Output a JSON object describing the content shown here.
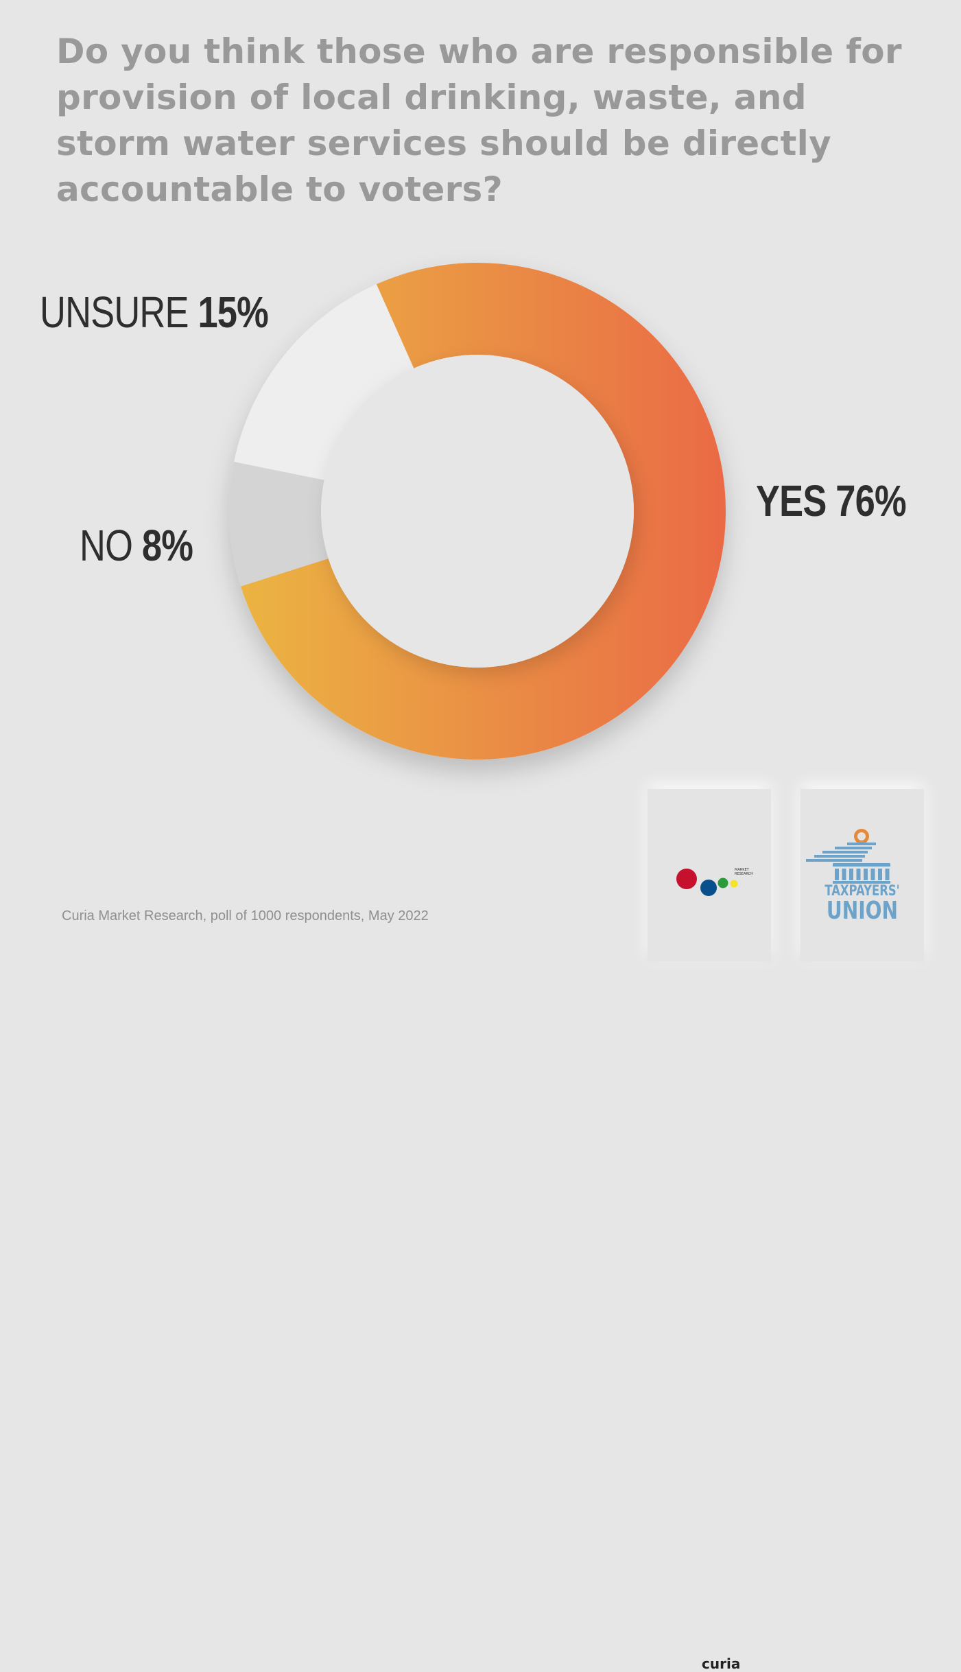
{
  "title": "Do you think those who are responsible for provision of local drinking, waste, and storm water services should be directly accountable to voters?",
  "chart_data": {
    "type": "pie",
    "title": "Do you think those who are responsible for provision of local drinking, waste, and storm water services should be directly accountable to voters?",
    "donut": true,
    "categories": [
      "YES",
      "NO",
      "UNSURE"
    ],
    "values": [
      76,
      8,
      15
    ],
    "labels": [
      {
        "word": "YES",
        "value": "76%"
      },
      {
        "word": "NO",
        "value": "8%"
      },
      {
        "word": "UNSURE",
        "value": "15%"
      }
    ],
    "colors": [
      "#e9a441",
      "#d4d4d4",
      "#eeeeee"
    ],
    "gradient": [
      "#ebb443",
      "#ea6a45"
    ],
    "legend": "none"
  },
  "source": "Curia Market Research, poll of 1000 respondents, May 2022",
  "logos": {
    "curia": {
      "word": "curia",
      "sub": "MARKET RESEARCH",
      "dot_colors": [
        "#c5102e",
        "#0a4f8c",
        "#2a9a3a",
        "#f2e42a"
      ]
    },
    "taxpayers_union": {
      "line1": "TAXPAYERS'",
      "line2": "UNION",
      "color": "#6da3c9",
      "accent": "#e58a3a"
    }
  }
}
